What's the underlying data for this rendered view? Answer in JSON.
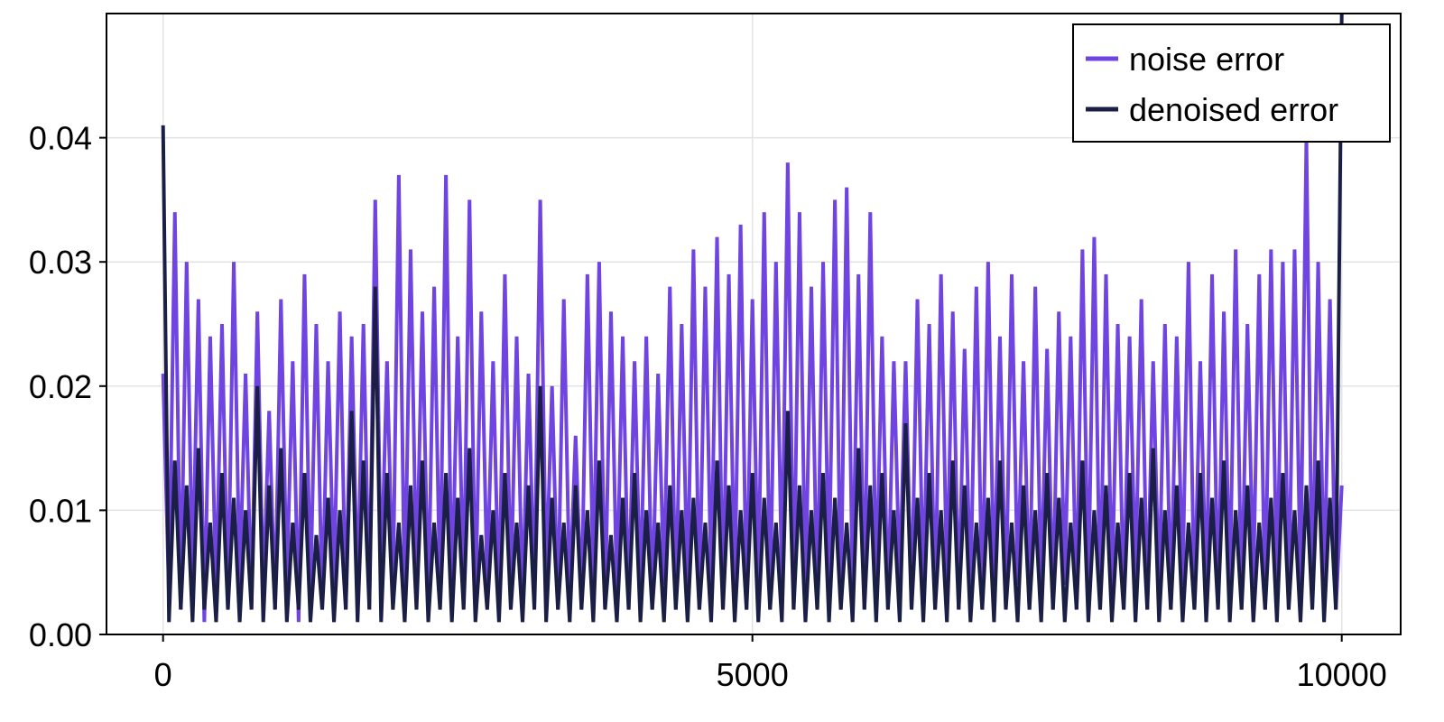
{
  "chart_data": {
    "type": "line",
    "x": [
      0,
      50,
      100,
      150,
      200,
      250,
      300,
      350,
      400,
      450,
      500,
      550,
      600,
      650,
      700,
      750,
      800,
      850,
      900,
      950,
      1000,
      1050,
      1100,
      1150,
      1200,
      1250,
      1300,
      1350,
      1400,
      1450,
      1500,
      1550,
      1600,
      1650,
      1700,
      1750,
      1800,
      1850,
      1900,
      1950,
      2000,
      2050,
      2100,
      2150,
      2200,
      2250,
      2300,
      2350,
      2400,
      2450,
      2500,
      2550,
      2600,
      2650,
      2700,
      2750,
      2800,
      2850,
      2900,
      2950,
      3000,
      3050,
      3100,
      3150,
      3200,
      3250,
      3300,
      3350,
      3400,
      3450,
      3500,
      3550,
      3600,
      3650,
      3700,
      3750,
      3800,
      3850,
      3900,
      3950,
      4000,
      4050,
      4100,
      4150,
      4200,
      4250,
      4300,
      4350,
      4400,
      4450,
      4500,
      4550,
      4600,
      4650,
      4700,
      4750,
      4800,
      4850,
      4900,
      4950,
      5000,
      5050,
      5100,
      5150,
      5200,
      5250,
      5300,
      5350,
      5400,
      5450,
      5500,
      5550,
      5600,
      5650,
      5700,
      5750,
      5800,
      5850,
      5900,
      5950,
      6000,
      6050,
      6100,
      6150,
      6200,
      6250,
      6300,
      6350,
      6400,
      6450,
      6500,
      6550,
      6600,
      6650,
      6700,
      6750,
      6800,
      6850,
      6900,
      6950,
      7000,
      7050,
      7100,
      7150,
      7200,
      7250,
      7300,
      7350,
      7400,
      7450,
      7500,
      7550,
      7600,
      7650,
      7700,
      7750,
      7800,
      7850,
      7900,
      7950,
      8000,
      8050,
      8100,
      8150,
      8200,
      8250,
      8300,
      8350,
      8400,
      8450,
      8500,
      8550,
      8600,
      8650,
      8700,
      8750,
      8800,
      8850,
      8900,
      8950,
      9000,
      9050,
      9100,
      9150,
      9200,
      9250,
      9300,
      9350,
      9400,
      9450,
      9500,
      9550,
      9600,
      9650,
      9700,
      9750,
      9800,
      9850,
      9900,
      9950,
      10000
    ],
    "series": [
      {
        "name": "noise error",
        "color": "#6f44e0",
        "values": [
          0.021,
          0.003,
          0.034,
          0.002,
          0.03,
          0.004,
          0.027,
          0.001,
          0.024,
          0.003,
          0.025,
          0.002,
          0.03,
          0.004,
          0.021,
          0.002,
          0.026,
          0.003,
          0.018,
          0.002,
          0.027,
          0.004,
          0.022,
          0.001,
          0.029,
          0.003,
          0.025,
          0.002,
          0.022,
          0.004,
          0.026,
          0.002,
          0.024,
          0.003,
          0.025,
          0.002,
          0.035,
          0.004,
          0.022,
          0.003,
          0.037,
          0.002,
          0.031,
          0.004,
          0.026,
          0.002,
          0.028,
          0.003,
          0.037,
          0.002,
          0.024,
          0.003,
          0.035,
          0.002,
          0.026,
          0.004,
          0.022,
          0.002,
          0.029,
          0.003,
          0.024,
          0.002,
          0.021,
          0.003,
          0.035,
          0.004,
          0.02,
          0.002,
          0.027,
          0.003,
          0.016,
          0.002,
          0.029,
          0.004,
          0.03,
          0.002,
          0.026,
          0.003,
          0.024,
          0.002,
          0.022,
          0.003,
          0.024,
          0.002,
          0.021,
          0.004,
          0.028,
          0.002,
          0.025,
          0.003,
          0.031,
          0.002,
          0.028,
          0.004,
          0.032,
          0.002,
          0.029,
          0.003,
          0.033,
          0.002,
          0.027,
          0.003,
          0.034,
          0.002,
          0.03,
          0.004,
          0.038,
          0.002,
          0.034,
          0.003,
          0.028,
          0.002,
          0.03,
          0.004,
          0.035,
          0.002,
          0.036,
          0.003,
          0.029,
          0.002,
          0.034,
          0.003,
          0.024,
          0.002,
          0.022,
          0.004,
          0.022,
          0.002,
          0.027,
          0.003,
          0.025,
          0.002,
          0.029,
          0.004,
          0.026,
          0.002,
          0.023,
          0.003,
          0.028,
          0.002,
          0.03,
          0.003,
          0.024,
          0.002,
          0.029,
          0.004,
          0.022,
          0.002,
          0.028,
          0.003,
          0.023,
          0.002,
          0.026,
          0.004,
          0.024,
          0.002,
          0.031,
          0.003,
          0.032,
          0.002,
          0.029,
          0.003,
          0.025,
          0.002,
          0.024,
          0.004,
          0.027,
          0.002,
          0.022,
          0.003,
          0.025,
          0.002,
          0.024,
          0.004,
          0.03,
          0.002,
          0.022,
          0.003,
          0.029,
          0.002,
          0.026,
          0.003,
          0.031,
          0.002,
          0.025,
          0.004,
          0.029,
          0.002,
          0.031,
          0.003,
          0.03,
          0.002,
          0.031,
          0.004,
          0.04,
          0.002,
          0.03,
          0.003,
          0.027,
          0.002,
          0.012
        ]
      },
      {
        "name": "denoised error",
        "color": "#1b1f45",
        "values": [
          0.041,
          0.001,
          0.014,
          0.002,
          0.012,
          0.001,
          0.015,
          0.002,
          0.009,
          0.001,
          0.013,
          0.002,
          0.011,
          0.001,
          0.01,
          0.002,
          0.02,
          0.001,
          0.012,
          0.002,
          0.015,
          0.001,
          0.009,
          0.002,
          0.013,
          0.001,
          0.008,
          0.002,
          0.011,
          0.001,
          0.01,
          0.002,
          0.018,
          0.001,
          0.014,
          0.002,
          0.028,
          0.001,
          0.013,
          0.002,
          0.009,
          0.001,
          0.012,
          0.002,
          0.014,
          0.001,
          0.009,
          0.002,
          0.013,
          0.001,
          0.011,
          0.002,
          0.015,
          0.001,
          0.008,
          0.002,
          0.01,
          0.001,
          0.013,
          0.002,
          0.009,
          0.001,
          0.012,
          0.002,
          0.02,
          0.001,
          0.011,
          0.002,
          0.009,
          0.001,
          0.012,
          0.002,
          0.01,
          0.001,
          0.014,
          0.002,
          0.008,
          0.001,
          0.011,
          0.002,
          0.013,
          0.001,
          0.01,
          0.002,
          0.009,
          0.001,
          0.012,
          0.002,
          0.01,
          0.001,
          0.011,
          0.002,
          0.009,
          0.001,
          0.014,
          0.002,
          0.012,
          0.001,
          0.01,
          0.002,
          0.013,
          0.001,
          0.011,
          0.002,
          0.009,
          0.001,
          0.018,
          0.002,
          0.012,
          0.001,
          0.01,
          0.002,
          0.013,
          0.001,
          0.011,
          0.002,
          0.009,
          0.001,
          0.015,
          0.002,
          0.012,
          0.001,
          0.013,
          0.002,
          0.01,
          0.001,
          0.017,
          0.002,
          0.011,
          0.001,
          0.013,
          0.002,
          0.01,
          0.001,
          0.014,
          0.002,
          0.012,
          0.001,
          0.009,
          0.002,
          0.011,
          0.001,
          0.014,
          0.002,
          0.009,
          0.001,
          0.012,
          0.002,
          0.01,
          0.001,
          0.013,
          0.002,
          0.011,
          0.001,
          0.009,
          0.002,
          0.014,
          0.001,
          0.01,
          0.002,
          0.012,
          0.001,
          0.009,
          0.002,
          0.013,
          0.001,
          0.011,
          0.002,
          0.015,
          0.001,
          0.01,
          0.002,
          0.012,
          0.001,
          0.009,
          0.002,
          0.013,
          0.001,
          0.011,
          0.002,
          0.014,
          0.001,
          0.01,
          0.002,
          0.012,
          0.001,
          0.009,
          0.002,
          0.011,
          0.001,
          0.013,
          0.002,
          0.01,
          0.001,
          0.012,
          0.002,
          0.014,
          0.001,
          0.011,
          0.002,
          0.05
        ]
      }
    ],
    "xlim": [
      -480,
      10500
    ],
    "xticks": [
      0,
      5000,
      10000
    ],
    "ylim": [
      0,
      0.05
    ],
    "yticks": [
      {
        "value": 0,
        "label": "0.00"
      },
      0.01,
      0.02,
      0.03,
      0.04
    ],
    "grid": true,
    "legend": "top-right"
  }
}
